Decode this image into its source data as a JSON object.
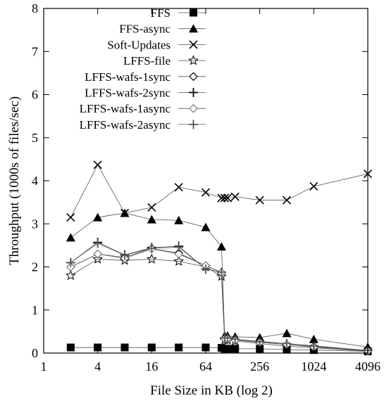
{
  "chart_data": {
    "type": "line",
    "title": "",
    "xlabel": "File Size in KB (log 2)",
    "ylabel": "Throughput (1000s of files/sec)",
    "x_scale": "log2",
    "xlim": [
      1,
      4096
    ],
    "ylim": [
      0,
      8
    ],
    "x_ticks": [
      {
        "value": 1,
        "label": "1"
      },
      {
        "value": 4,
        "label": "4"
      },
      {
        "value": 16,
        "label": "16"
      },
      {
        "value": 64,
        "label": "64"
      },
      {
        "value": 256,
        "label": "256"
      },
      {
        "value": 1024,
        "label": "1024"
      },
      {
        "value": 4096,
        "label": "4096"
      }
    ],
    "y_ticks": [
      {
        "value": 0,
        "label": "0"
      },
      {
        "value": 1,
        "label": "1"
      },
      {
        "value": 2,
        "label": "2"
      },
      {
        "value": 3,
        "label": "3"
      },
      {
        "value": 4,
        "label": "4"
      },
      {
        "value": 5,
        "label": "5"
      },
      {
        "value": 6,
        "label": "6"
      },
      {
        "value": 7,
        "label": "7"
      },
      {
        "value": 8,
        "label": "8"
      }
    ],
    "grid": false,
    "legend_position": "top-right",
    "series": [
      {
        "name": "FFS",
        "marker": "filled-square",
        "points": [
          [
            2,
            0.13
          ],
          [
            4,
            0.13
          ],
          [
            8,
            0.13
          ],
          [
            16,
            0.13
          ],
          [
            32,
            0.13
          ],
          [
            64,
            0.13
          ],
          [
            96,
            0.12
          ],
          [
            104,
            0.1
          ],
          [
            112,
            0.1
          ],
          [
            136,
            0.1
          ],
          [
            256,
            0.1
          ],
          [
            512,
            0.08
          ],
          [
            1024,
            0.07
          ],
          [
            4096,
            0.04
          ]
        ]
      },
      {
        "name": "FFS-async",
        "marker": "filled-triangle",
        "points": [
          [
            2,
            2.68
          ],
          [
            4,
            3.15
          ],
          [
            8,
            3.25
          ],
          [
            16,
            3.1
          ],
          [
            32,
            3.08
          ],
          [
            64,
            2.92
          ],
          [
            96,
            2.47
          ],
          [
            104,
            0.4
          ],
          [
            112,
            0.4
          ],
          [
            136,
            0.38
          ],
          [
            256,
            0.36
          ],
          [
            512,
            0.46
          ],
          [
            1024,
            0.32
          ],
          [
            4096,
            0.14
          ]
        ]
      },
      {
        "name": "Soft-Updates",
        "marker": "cross-x",
        "points": [
          [
            2,
            3.15
          ],
          [
            4,
            4.37
          ],
          [
            8,
            3.25
          ],
          [
            16,
            3.38
          ],
          [
            32,
            3.85
          ],
          [
            64,
            3.73
          ],
          [
            96,
            3.6
          ],
          [
            104,
            3.6
          ],
          [
            112,
            3.6
          ],
          [
            136,
            3.63
          ],
          [
            256,
            3.55
          ],
          [
            512,
            3.55
          ],
          [
            1024,
            3.87
          ],
          [
            4096,
            4.16
          ]
        ]
      },
      {
        "name": "LFFS-file",
        "marker": "star",
        "points": [
          [
            2,
            1.8
          ],
          [
            4,
            2.18
          ],
          [
            8,
            2.15
          ],
          [
            16,
            2.18
          ],
          [
            32,
            2.13
          ],
          [
            64,
            2.0
          ],
          [
            96,
            1.78
          ],
          [
            104,
            0.3
          ],
          [
            112,
            0.3
          ],
          [
            136,
            0.28
          ],
          [
            256,
            0.22
          ],
          [
            512,
            0.16
          ],
          [
            1024,
            0.12
          ],
          [
            4096,
            0.04
          ]
        ]
      },
      {
        "name": "LFFS-wafs-1sync",
        "marker": "open-diamond",
        "points": [
          [
            2,
            2.0
          ],
          [
            4,
            2.3
          ],
          [
            8,
            2.22
          ],
          [
            16,
            2.43
          ],
          [
            32,
            2.32
          ],
          [
            64,
            2.03
          ],
          [
            96,
            1.87
          ],
          [
            104,
            0.33
          ],
          [
            112,
            0.33
          ],
          [
            136,
            0.3
          ],
          [
            256,
            0.25
          ],
          [
            512,
            0.2
          ],
          [
            1024,
            0.15
          ],
          [
            4096,
            0.05
          ]
        ]
      },
      {
        "name": "LFFS-wafs-2sync",
        "marker": "plus",
        "points": [
          [
            2,
            2.1
          ],
          [
            4,
            2.57
          ],
          [
            8,
            2.28
          ],
          [
            16,
            2.45
          ],
          [
            32,
            2.48
          ],
          [
            64,
            1.95
          ],
          [
            96,
            1.88
          ],
          [
            104,
            0.35
          ],
          [
            112,
            0.35
          ],
          [
            136,
            0.32
          ],
          [
            256,
            0.27
          ],
          [
            512,
            0.22
          ],
          [
            1024,
            0.17
          ],
          [
            4096,
            0.06
          ]
        ]
      },
      {
        "name": "LFFS-wafs-1async",
        "marker": "open-diamond-light",
        "points": [
          [
            2,
            2.0
          ],
          [
            4,
            2.3
          ],
          [
            8,
            2.2
          ],
          [
            16,
            2.42
          ],
          [
            32,
            2.3
          ],
          [
            64,
            2.03
          ],
          [
            96,
            1.87
          ],
          [
            104,
            0.33
          ],
          [
            112,
            0.33
          ],
          [
            136,
            0.3
          ],
          [
            256,
            0.25
          ],
          [
            512,
            0.2
          ],
          [
            1024,
            0.14
          ],
          [
            4096,
            0.05
          ]
        ]
      },
      {
        "name": "LFFS-wafs-2async",
        "marker": "plus-light",
        "points": [
          [
            2,
            2.1
          ],
          [
            4,
            2.55
          ],
          [
            8,
            2.27
          ],
          [
            16,
            2.43
          ],
          [
            32,
            2.46
          ],
          [
            64,
            1.95
          ],
          [
            96,
            1.88
          ],
          [
            104,
            0.35
          ],
          [
            112,
            0.35
          ],
          [
            136,
            0.32
          ],
          [
            256,
            0.26
          ],
          [
            512,
            0.22
          ],
          [
            1024,
            0.16
          ],
          [
            4096,
            0.06
          ]
        ]
      }
    ]
  }
}
